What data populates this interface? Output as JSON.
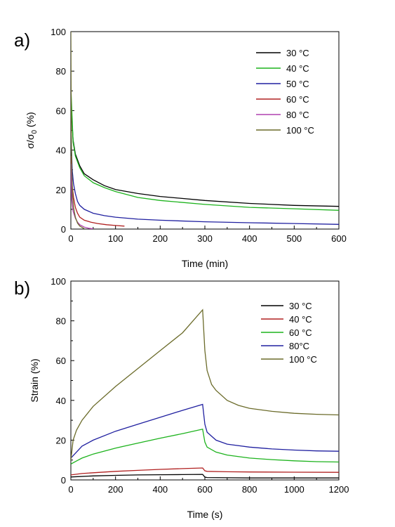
{
  "chart_data": [
    {
      "panel": "a)",
      "type": "line",
      "ylabel": "σ/σ0 (%)",
      "ylabel_main": "σ/σ",
      "ylabel_sub": "0",
      "ylabel_tail": " (%)",
      "xlabel": "Time (min)",
      "xlim": [
        0,
        600
      ],
      "ylim": [
        0,
        100
      ],
      "xticks": [
        "0",
        "100",
        "200",
        "300",
        "400",
        "500",
        "600"
      ],
      "yticks": [
        "0",
        "20",
        "40",
        "60",
        "80",
        "100"
      ],
      "legend_position": "top-right",
      "grid": false,
      "series": [
        {
          "name": "30 °C",
          "color": "#000000",
          "x": [
            0,
            5,
            10,
            20,
            30,
            50,
            75,
            100,
            150,
            200,
            300,
            400,
            500,
            600
          ],
          "y": [
            64,
            45,
            38,
            32,
            28,
            25,
            22,
            20,
            18,
            16.5,
            14.5,
            13,
            12,
            11.5
          ]
        },
        {
          "name": "40 °C",
          "color": "#1db31d",
          "x": [
            0,
            5,
            10,
            20,
            30,
            50,
            75,
            100,
            150,
            200,
            300,
            400,
            500,
            600
          ],
          "y": [
            72,
            44,
            37,
            31,
            27,
            23.5,
            21,
            19,
            16,
            14.5,
            12.5,
            11,
            10.3,
            9.5
          ]
        },
        {
          "name": "50 °C",
          "color": "#2020a0",
          "x": [
            0,
            3,
            6,
            10,
            15,
            20,
            30,
            50,
            75,
            100,
            150,
            200,
            300,
            400,
            500,
            600
          ],
          "y": [
            50,
            30,
            23,
            18,
            14,
            12,
            10,
            8,
            6.8,
            6,
            5,
            4.5,
            3.7,
            3.2,
            2.8,
            2.4
          ]
        },
        {
          "name": "60 °C",
          "color": "#b02020",
          "x": [
            0,
            3,
            6,
            10,
            15,
            20,
            30,
            45,
            60,
            80,
            100,
            120
          ],
          "y": [
            37,
            22,
            16,
            11,
            8,
            6,
            4.5,
            3.5,
            2.8,
            2.2,
            1.8,
            1.5
          ]
        },
        {
          "name": "80 °C",
          "color": "#b040b0",
          "x": [
            0,
            2,
            5,
            10,
            15,
            20,
            30,
            40,
            50
          ],
          "y": [
            33,
            15,
            9,
            5.5,
            3.5,
            2.2,
            1,
            0.4,
            0.1
          ]
        },
        {
          "name": "100 °C",
          "color": "#6b6b2a",
          "x": [
            0,
            1,
            2,
            4,
            6,
            10,
            15,
            20,
            30
          ],
          "y": [
            100,
            50,
            30,
            17,
            11,
            6,
            3,
            1.5,
            0.2
          ]
        }
      ]
    },
    {
      "panel": "b)",
      "type": "line",
      "ylabel": "Strain (%)",
      "xlabel": "Time (s)",
      "xlim": [
        0,
        1200
      ],
      "ylim": [
        0,
        100
      ],
      "xticks": [
        "0",
        "200",
        "400",
        "600",
        "800",
        "1000",
        "1200"
      ],
      "yticks": [
        "0",
        "20",
        "40",
        "60",
        "80",
        "100"
      ],
      "legend_position": "top-right",
      "grid": false,
      "series": [
        {
          "name": "30 °C",
          "color": "#000000",
          "x": [
            0,
            100,
            200,
            300,
            400,
            500,
            590,
            600,
            610,
            700,
            800,
            1000,
            1200
          ],
          "y": [
            1.5,
            2,
            2.3,
            2.5,
            2.6,
            2.7,
            2.8,
            1.4,
            1.2,
            1.1,
            1,
            1,
            1
          ]
        },
        {
          "name": "40 °C",
          "color": "#b02020",
          "x": [
            0,
            50,
            100,
            200,
            300,
            400,
            500,
            590,
            600,
            610,
            700,
            800,
            1000,
            1200
          ],
          "y": [
            2.5,
            3.2,
            3.6,
            4.3,
            4.8,
            5.3,
            5.7,
            6,
            4.6,
            4.3,
            4.1,
            4,
            3.9,
            3.8
          ]
        },
        {
          "name": "60 °C",
          "color": "#1db31d",
          "x": [
            0,
            25,
            50,
            100,
            200,
            300,
            400,
            500,
            590,
            600,
            610,
            650,
            700,
            800,
            900,
            1000,
            1100,
            1200
          ],
          "y": [
            8,
            9.5,
            11,
            13,
            16,
            18.5,
            21,
            23.3,
            25.5,
            19,
            16.5,
            14,
            12.5,
            11,
            10.2,
            9.6,
            9.2,
            9
          ]
        },
        {
          "name": "80°C",
          "color": "#2020a0",
          "x": [
            0,
            25,
            50,
            100,
            200,
            300,
            400,
            500,
            590,
            600,
            610,
            650,
            700,
            800,
            900,
            1000,
            1100,
            1200
          ],
          "y": [
            11,
            14,
            17,
            20,
            24.5,
            28,
            31.5,
            35,
            38,
            28,
            24,
            20,
            18,
            16.5,
            15.6,
            15,
            14.6,
            14.4
          ]
        },
        {
          "name": "100 °C",
          "color": "#6b6b2a",
          "x": [
            0,
            10,
            25,
            50,
            100,
            200,
            300,
            400,
            500,
            590,
            600,
            610,
            630,
            650,
            700,
            750,
            800,
            900,
            1000,
            1100,
            1200
          ],
          "y": [
            10,
            20,
            25,
            30,
            37,
            47,
            56,
            65,
            74,
            85.5,
            65,
            55,
            48,
            45,
            40,
            37.5,
            36,
            34.5,
            33.5,
            33,
            32.7
          ]
        }
      ]
    }
  ]
}
